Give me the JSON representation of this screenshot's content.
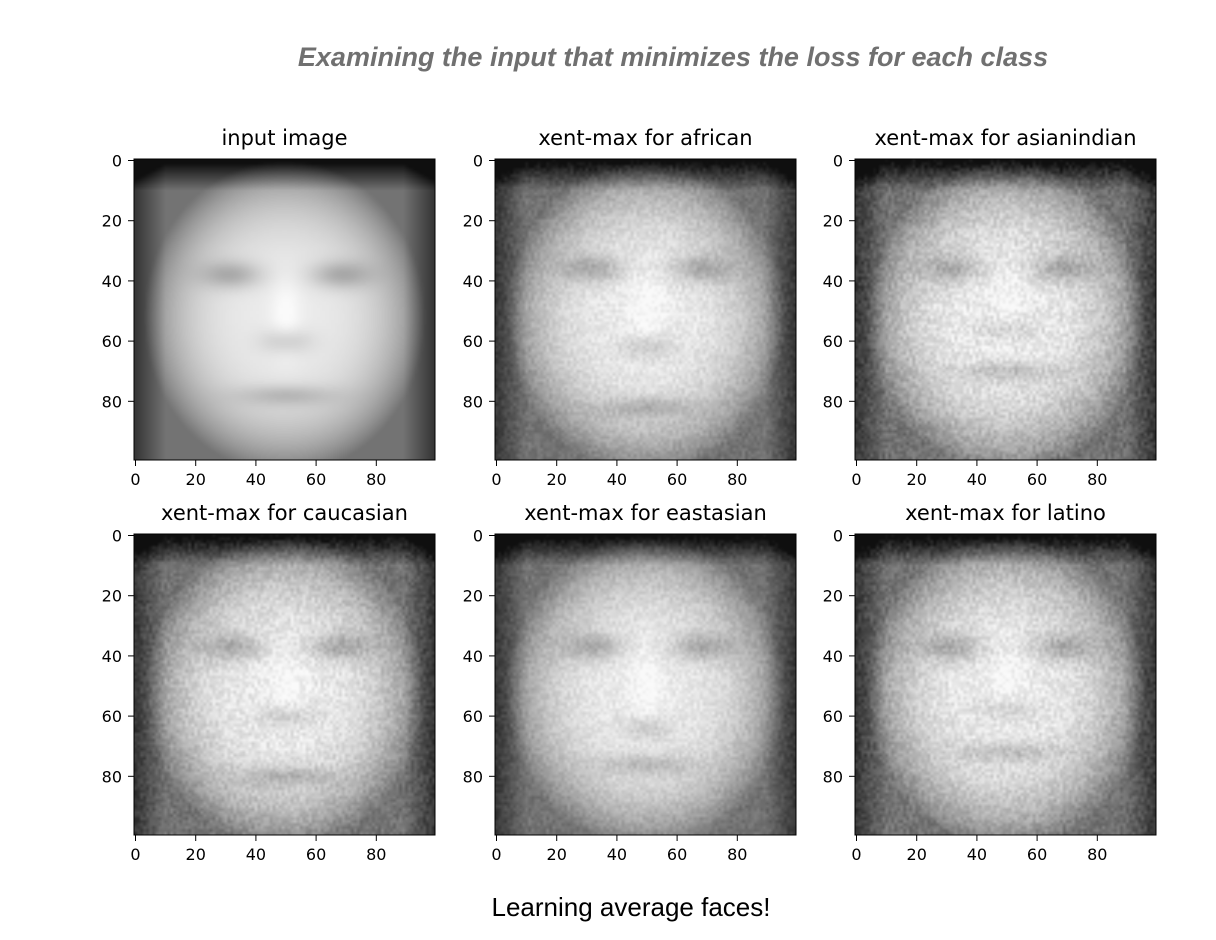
{
  "headline": "Examining the input that minimizes the loss for each class",
  "caption": "Learning average faces!",
  "chart_data": {
    "type": "heatmap",
    "colormap": "gray",
    "image_size": [
      100,
      100
    ],
    "xlim": [
      0,
      99
    ],
    "ylim": [
      99,
      0
    ],
    "xticks": [
      0,
      20,
      40,
      60,
      80
    ],
    "yticks": [
      0,
      20,
      40,
      60,
      80
    ],
    "panels": [
      {
        "title": "input image",
        "noise": 0.0,
        "eye_y": 38,
        "mouth_y": 78,
        "nose_y": 60
      },
      {
        "title": "xent-max for african",
        "noise": 0.55,
        "eye_y": 36,
        "mouth_y": 82,
        "nose_y": 62
      },
      {
        "title": "xent-max for asianindian",
        "noise": 0.8,
        "eye_y": 36,
        "mouth_y": 70,
        "nose_y": 56
      },
      {
        "title": "xent-max for caucasian",
        "noise": 0.7,
        "eye_y": 37,
        "mouth_y": 80,
        "nose_y": 60
      },
      {
        "title": "xent-max for eastasian",
        "noise": 0.55,
        "eye_y": 37,
        "mouth_y": 76,
        "nose_y": 64
      },
      {
        "title": "xent-max for latino",
        "noise": 0.75,
        "eye_y": 37,
        "mouth_y": 72,
        "nose_y": 58
      }
    ]
  }
}
